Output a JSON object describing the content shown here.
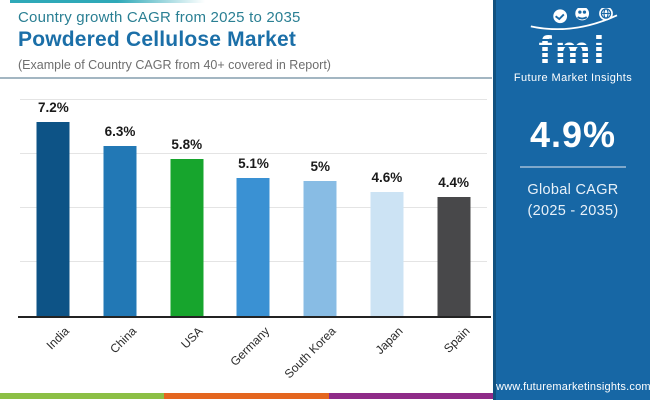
{
  "header": {
    "eyebrow": "Country growth CAGR from 2025 to 2035",
    "title": "Powdered Cellulose Market",
    "subtitle": "(Example of Country CAGR from 40+ covered in Report)"
  },
  "chart_data": {
    "type": "bar",
    "title": "Country growth CAGR from 2025 to 2035 - Powdered Cellulose Market",
    "categories": [
      "India",
      "China",
      "USA",
      "Germany",
      "South Korea",
      "Japan",
      "Spain"
    ],
    "values": [
      7.2,
      6.3,
      5.8,
      5.1,
      5.0,
      4.6,
      4.4
    ],
    "value_labels": [
      "7.2%",
      "6.3%",
      "5.8%",
      "5.1%",
      "5%",
      "4.6%",
      "4.4%"
    ],
    "bar_colors": [
      "#0d5386",
      "#2278b5",
      "#17a52d",
      "#3a91d3",
      "#88bce4",
      "#cce3f4",
      "#48484a"
    ],
    "xlabel": "",
    "ylabel": "",
    "ylim": [
      0,
      8.6
    ],
    "gridlines": [
      2,
      4,
      6,
      8
    ],
    "grid": true,
    "legend": false
  },
  "sidebar": {
    "bg_color": "#1767a5",
    "logo_text": "fmi",
    "logo_caption": "Future Market Insights",
    "logo_icons": [
      "handshake-icon",
      "people-icon",
      "globe-icon"
    ],
    "cagr_value": "4.9%",
    "cagr_label_line1": "Global CAGR",
    "cagr_label_line2": "(2025 - 2035)",
    "website": "www.futuremarketinsights.com"
  },
  "accents": {
    "top_stripe_color": "#2fa9b8",
    "divider_color": "#a3b6c2",
    "footer_stripe_colors": [
      "#8cbf45",
      "#e4661f",
      "#8f2b88"
    ]
  }
}
